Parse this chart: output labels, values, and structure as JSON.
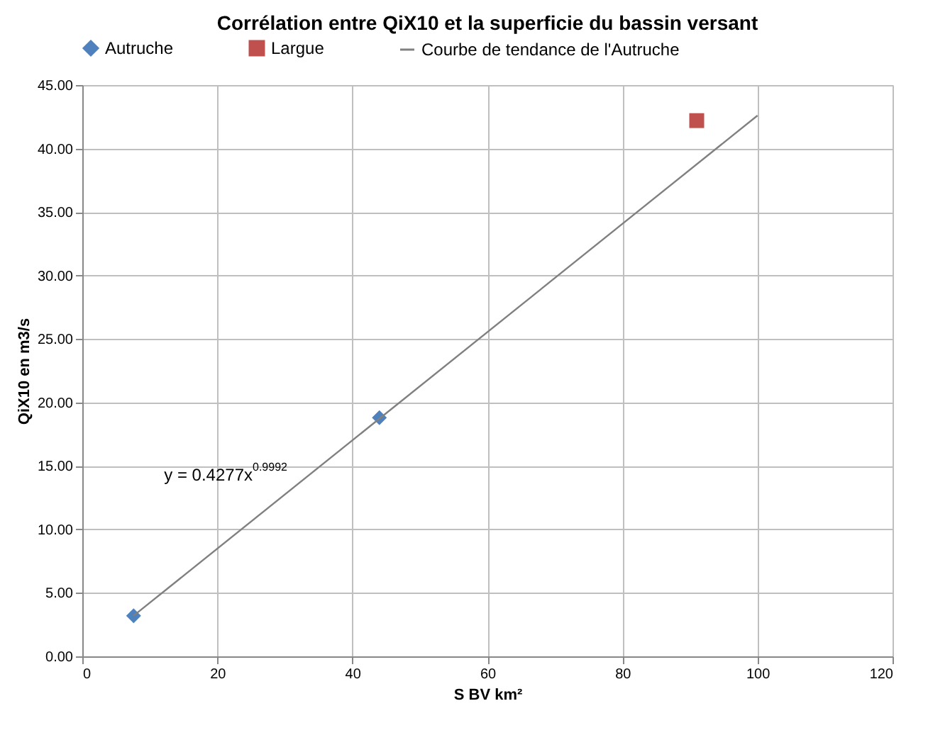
{
  "chart_data": {
    "type": "scatter",
    "title": "Corrélation entre QiX10 et la superficie du bassin versant",
    "xlabel": "S BV km²",
    "ylabel": "QiX10 en m3/s",
    "series": [
      {
        "name": "Autruche",
        "type": "scatter",
        "marker": "diamond",
        "color": "#4f81bd",
        "x": [
          7.6,
          44
        ],
        "values": [
          3.2,
          18.8
        ]
      },
      {
        "name": "Largue",
        "type": "scatter",
        "marker": "square",
        "color": "#c0504d",
        "x": [
          91
        ],
        "values": [
          42.2
        ]
      },
      {
        "name": "Courbe de tendance de l'Autruche",
        "type": "line",
        "marker": "none",
        "color": "#808080",
        "x": [
          7.6,
          100
        ],
        "values": [
          3.2,
          42.6
        ]
      }
    ],
    "annotations": [
      "y = 0.4277x$^{0.9992}$"
    ],
    "xlim": [
      0,
      120
    ],
    "xticks": [
      0,
      20,
      40,
      60,
      80,
      100,
      120
    ],
    "ylim": [
      0,
      45
    ],
    "yticks": [
      {
        "value": 0,
        "label": "0.00"
      },
      {
        "value": 5,
        "label": "5.00"
      },
      {
        "value": 10,
        "label": "10.00"
      },
      {
        "value": 15,
        "label": "15.00"
      },
      {
        "value": 20,
        "label": "20.00"
      },
      {
        "value": 25,
        "label": "25.00"
      },
      {
        "value": 30,
        "label": "30.00"
      },
      {
        "value": 35,
        "label": "35.00"
      },
      {
        "value": 40,
        "label": "40.00"
      },
      {
        "value": 45,
        "label": "45.00"
      }
    ],
    "grid": true,
    "legend": "top"
  }
}
